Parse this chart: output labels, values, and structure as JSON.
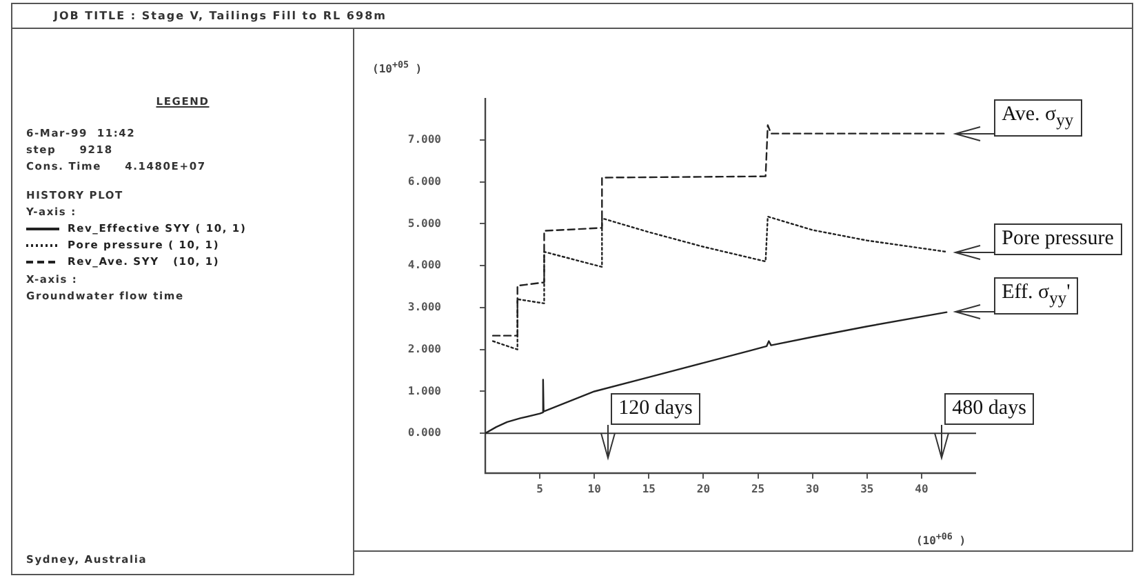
{
  "chart_data": {
    "type": "line",
    "title": "JOB TITLE : Stage V, Tailings Fill to RL 698m",
    "legend_title": "LEGEND",
    "xlabel": "(10$^{+06}$ )",
    "ylabel": "(10$^{+05}$ )",
    "xlim": [
      0,
      45
    ],
    "xticks": [
      5,
      10,
      15,
      20,
      25,
      30,
      35,
      40
    ],
    "ylim": [
      -0.95,
      8
    ],
    "yticks": [
      {
        "value": 0,
        "label": "0.000"
      },
      {
        "value": 1,
        "label": "1.000"
      },
      {
        "value": 2,
        "label": "2.000"
      },
      {
        "value": 3,
        "label": "3.000"
      },
      {
        "value": 4,
        "label": "4.000"
      },
      {
        "value": 5,
        "label": "5.000"
      },
      {
        "value": 6,
        "label": "6.000"
      },
      {
        "value": 7,
        "label": "7.000"
      }
    ],
    "grid": false,
    "legend": "left",
    "marker": "none",
    "series": [
      {
        "name": "Rev_Effective SYY ( 10, 1)",
        "color": "#222222",
        "line_style": "solid",
        "x": [
          0,
          1,
          2,
          3.2,
          5,
          5.3,
          5.3,
          5.35,
          10,
          15,
          20,
          24.4,
          25.8,
          26,
          26.2,
          30,
          35,
          42.3
        ],
        "values": [
          0,
          0.15,
          0.27,
          0.36,
          0.47,
          0.5,
          1.28,
          0.52,
          1.0,
          1.34,
          1.68,
          1.98,
          2.08,
          2.2,
          2.1,
          2.3,
          2.55,
          2.89
        ]
      },
      {
        "name": "Pore pressure ( 10, 1)",
        "color": "#222222",
        "line_style": "dotted",
        "x": [
          0.7,
          2.95,
          2.95,
          5.4,
          5.4,
          10.7,
          10.7,
          15,
          20,
          25.7,
          25.9,
          30,
          35,
          42.3
        ],
        "values": [
          2.2,
          2.0,
          3.2,
          3.1,
          4.33,
          3.97,
          5.13,
          4.8,
          4.45,
          4.1,
          5.17,
          4.85,
          4.6,
          4.33
        ]
      },
      {
        "name": "Rev_Ave. SYY   (10, 1)",
        "color": "#222222",
        "line_style": "dashed",
        "x": [
          0.7,
          2.95,
          2.95,
          5.4,
          5.4,
          10.7,
          10.7,
          25.7,
          25.9,
          26.2,
          42.3
        ],
        "values": [
          2.33,
          2.33,
          3.52,
          3.6,
          4.83,
          4.9,
          6.1,
          6.13,
          7.35,
          7.15,
          7.15
        ]
      }
    ],
    "ref_lines": [
      {
        "axis": "y",
        "value": 0,
        "color": "#333333"
      }
    ],
    "annotations": [
      "6-Mar-99  11:42",
      "step     9218",
      "Cons. Time     4.1480E+07",
      "HISTORY PLOT",
      "Y-axis :",
      "X-axis :",
      "Groundwater flow time",
      "Sydney, Australia",
      {
        "text": "Ave. σ$_{yy}$",
        "x": 42.3,
        "y": 7.15
      },
      {
        "text": "Pore pressure",
        "x": 42.3,
        "y": 4.33
      },
      {
        "text": "Eff. σ$_{yy}$'",
        "x": 42.3,
        "y": 2.89
      },
      {
        "text": "120 days",
        "x": 11.2,
        "y": 0
      },
      {
        "text": "480 days",
        "x": 41.8,
        "y": 0
      }
    ]
  }
}
